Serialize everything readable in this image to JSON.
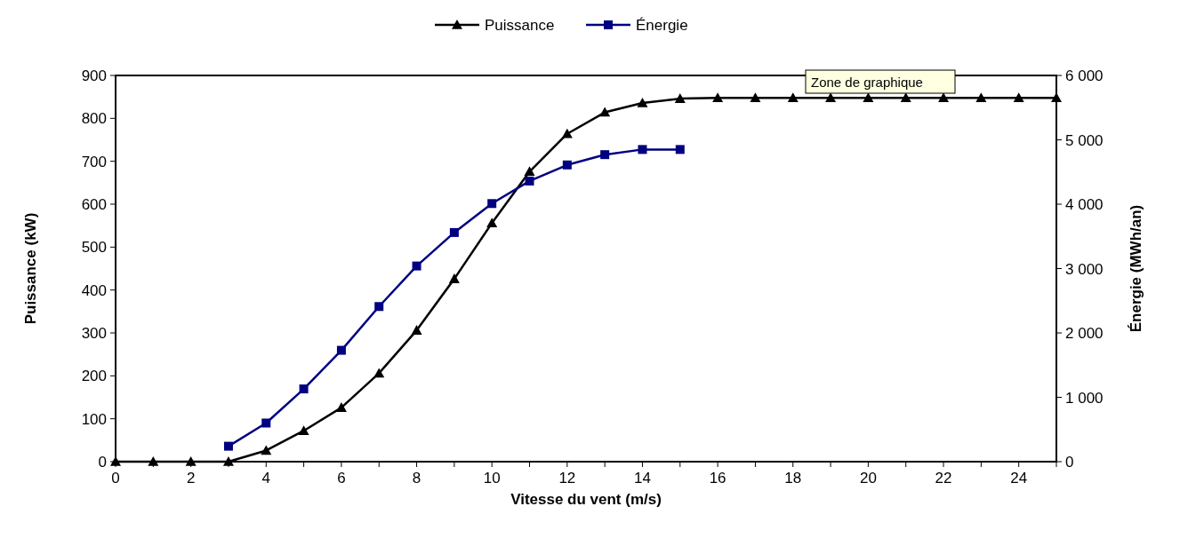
{
  "chart_data": {
    "type": "line",
    "xlabel": "Vitesse du vent (m/s)",
    "ylabel": "Puissance (kW)",
    "y2label": "Énergie (MWh/an)",
    "annotations": [
      "Zone de graphique"
    ],
    "legend": "top",
    "grid": false,
    "line_style": "solid",
    "xlim": [
      0,
      25
    ],
    "xticks": [
      0,
      {
        "value": 1,
        "label": null
      },
      2,
      {
        "value": 3,
        "label": null
      },
      4,
      {
        "value": 5,
        "label": null
      },
      6,
      {
        "value": 7,
        "label": null
      },
      8,
      {
        "value": 9,
        "label": null
      },
      10,
      {
        "value": 11,
        "label": null
      },
      12,
      {
        "value": 13,
        "label": null
      },
      14,
      {
        "value": 15,
        "label": null
      },
      16,
      {
        "value": 17,
        "label": null
      },
      18,
      {
        "value": 19,
        "label": null
      },
      20,
      {
        "value": 21,
        "label": null
      },
      22,
      {
        "value": 23,
        "label": null
      },
      24,
      {
        "value": 25,
        "label": null
      }
    ],
    "ylim": [
      0,
      900
    ],
    "yticks": [
      0,
      100,
      200,
      300,
      400,
      500,
      600,
      700,
      800,
      900
    ],
    "y2lim": [
      0,
      6000
    ],
    "y2ticks": [
      0,
      {
        "value": 1000,
        "label": "1 000"
      },
      {
        "value": 2000,
        "label": "2 000"
      },
      {
        "value": 3000,
        "label": "3 000"
      },
      {
        "value": 4000,
        "label": "4 000"
      },
      {
        "value": 5000,
        "label": "5 000"
      },
      {
        "value": 6000,
        "label": "6 000"
      }
    ],
    "series": [
      {
        "name": "Puissance",
        "color": "#000000",
        "marker": "triangle",
        "x": [
          0,
          1,
          2,
          3,
          4,
          5,
          6,
          7,
          8,
          9,
          10,
          11,
          12,
          13,
          14,
          15,
          16,
          17,
          18,
          19,
          20,
          21,
          22,
          23,
          24,
          25
        ],
        "values": [
          0,
          0,
          0,
          0,
          26,
          72,
          126,
          206,
          306,
          426,
          556,
          676,
          764,
          814,
          836,
          846,
          848,
          848,
          848,
          848,
          848,
          848,
          848,
          848,
          848,
          848
        ]
      },
      {
        "name": "Énergie",
        "color": "#000080",
        "marker": "square",
        "axis": "y2",
        "x": [
          3,
          4,
          5,
          6,
          7,
          8,
          9,
          10,
          11,
          12,
          13,
          14,
          15
        ],
        "values": [
          240,
          600,
          1130,
          1730,
          2410,
          3040,
          3560,
          4010,
          4360,
          4610,
          4770,
          4850,
          4850
        ]
      }
    ]
  }
}
